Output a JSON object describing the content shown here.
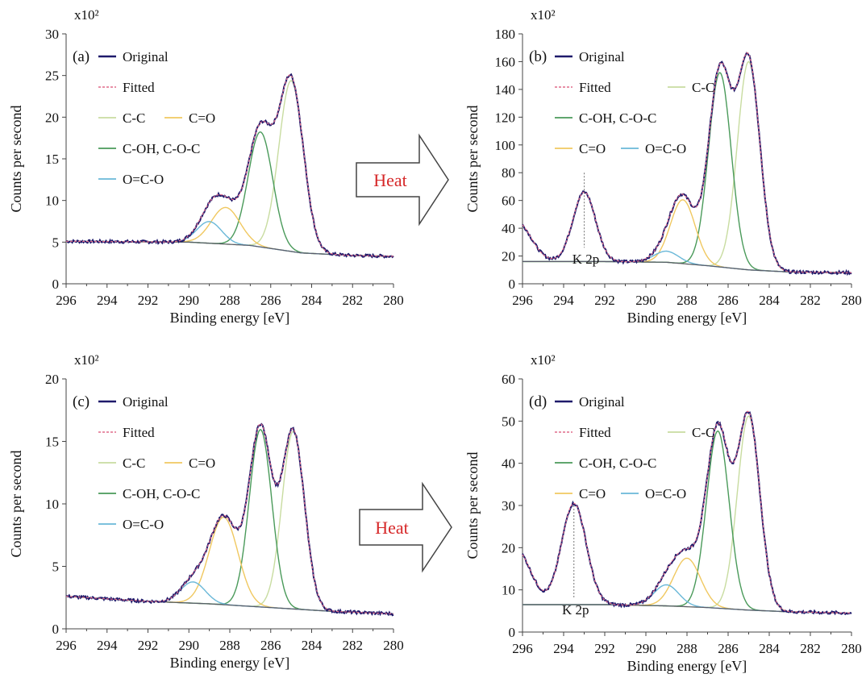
{
  "heat_label": "Heat",
  "colors": {
    "original": "#1f1a6b",
    "fitted": "#e06c8a",
    "cc": "#c8dca0",
    "co": "#f0c860",
    "coh": "#4a9a5a",
    "oco": "#6ab8d8",
    "bg": "#5a5a6a",
    "heat": "#d62728"
  },
  "chart_data": [
    {
      "type": "line",
      "panel": "(a)",
      "xlabel": "Binding energy [eV]",
      "ylabel": "Counts per second",
      "scale": "x10²",
      "xlim": [
        296,
        280
      ],
      "ylim": [
        0,
        30
      ],
      "xticks": [
        296,
        294,
        292,
        290,
        288,
        286,
        284,
        282,
        280
      ],
      "yticks": [
        0,
        5,
        10,
        15,
        20,
        25,
        30
      ],
      "legend": [
        {
          "key": "original",
          "label": "Original"
        },
        {
          "key": "fitted",
          "label": "Fitted"
        },
        {
          "key": "cc",
          "label": "C-C"
        },
        {
          "key": "co",
          "label": "C=O"
        },
        {
          "key": "coh",
          "label": "C-OH, C-O-C"
        },
        {
          "key": "oco",
          "label": "O=C-O"
        }
      ],
      "baseline": [
        [
          296,
          5.1
        ],
        [
          290,
          5.0
        ],
        [
          287,
          4.6
        ],
        [
          284.5,
          3.7
        ],
        [
          282,
          3.4
        ],
        [
          280,
          3.3
        ]
      ],
      "peaks": {
        "cc": [
          285.0,
          20.5,
          0.6
        ],
        "coh": [
          286.5,
          13.8,
          0.6
        ],
        "co": [
          288.2,
          4.4,
          0.7
        ],
        "oco": [
          289.0,
          2.6,
          0.6
        ]
      },
      "annotation": null
    },
    {
      "type": "line",
      "panel": "(b)",
      "xlabel": "Binding energy [eV]",
      "ylabel": "Counts per second",
      "scale": "x10²",
      "xlim": [
        296,
        280
      ],
      "ylim": [
        0,
        180
      ],
      "xticks": [
        296,
        294,
        292,
        290,
        288,
        286,
        284,
        282,
        280
      ],
      "yticks": [
        0,
        20,
        40,
        60,
        80,
        100,
        120,
        140,
        160,
        180
      ],
      "legend": [
        {
          "key": "original",
          "label": "Original"
        },
        {
          "key": "fitted",
          "label": "Fitted"
        },
        {
          "key": "cc",
          "label": "C-C"
        },
        {
          "key": "coh",
          "label": "C-OH, C-O-C"
        },
        {
          "key": "co",
          "label": "C=O"
        },
        {
          "key": "oco",
          "label": "O=C-O"
        }
      ],
      "baseline": [
        [
          292,
          16
        ],
        [
          289,
          15.5
        ],
        [
          287,
          13
        ],
        [
          285,
          10
        ],
        [
          283,
          8.5
        ],
        [
          280,
          8
        ]
      ],
      "peaks": {
        "cc": [
          285.0,
          150,
          0.55
        ],
        "coh": [
          286.4,
          140,
          0.55
        ],
        "co": [
          288.2,
          46,
          0.6
        ],
        "oco": [
          289.0,
          8,
          0.6
        ]
      },
      "extra": [
        {
          "center": 293.0,
          "height": 50,
          "width": 0.55
        },
        {
          "center": 296.3,
          "height": 29,
          "width": 0.7
        }
      ],
      "annotation": {
        "text": "K 2p",
        "x": 293.0,
        "y0": 26,
        "y1": 80
      }
    },
    {
      "type": "line",
      "panel": "(c)",
      "xlabel": "Binding energy [eV]",
      "ylabel": "Counts per second",
      "scale": "x10²",
      "xlim": [
        296,
        280
      ],
      "ylim": [
        0,
        20
      ],
      "xticks": [
        296,
        294,
        292,
        290,
        288,
        286,
        284,
        282,
        280
      ],
      "yticks": [
        0,
        5,
        10,
        15,
        20
      ],
      "legend": [
        {
          "key": "original",
          "label": "Original"
        },
        {
          "key": "fitted",
          "label": "Fitted"
        },
        {
          "key": "cc",
          "label": "C-C"
        },
        {
          "key": "co",
          "label": "C=O"
        },
        {
          "key": "coh",
          "label": "C-OH, C-O-C"
        },
        {
          "key": "oco",
          "label": "O=C-O"
        }
      ],
      "baseline": [
        [
          296,
          2.6
        ],
        [
          292,
          2.2
        ],
        [
          289,
          2.0
        ],
        [
          286,
          1.7
        ],
        [
          283,
          1.4
        ],
        [
          280,
          1.2
        ]
      ],
      "peaks": {
        "cc": [
          284.9,
          14.2,
          0.55
        ],
        "coh": [
          286.5,
          14.2,
          0.55
        ],
        "co": [
          288.3,
          7.0,
          0.7
        ],
        "oco": [
          289.8,
          1.7,
          0.6
        ]
      },
      "annotation": null
    },
    {
      "type": "line",
      "panel": "(d)",
      "xlabel": "Binding energy [eV]",
      "ylabel": "Counts per second",
      "scale": "x10²",
      "xlim": [
        296,
        280
      ],
      "ylim": [
        0,
        60
      ],
      "xticks": [
        296,
        294,
        292,
        290,
        288,
        286,
        284,
        282,
        280
      ],
      "yticks": [
        0,
        10,
        20,
        30,
        40,
        50,
        60
      ],
      "legend": [
        {
          "key": "original",
          "label": "Original"
        },
        {
          "key": "fitted",
          "label": "Fitted"
        },
        {
          "key": "cc",
          "label": "C-C"
        },
        {
          "key": "coh",
          "label": "C-OH, C-O-C"
        },
        {
          "key": "co",
          "label": "C=O"
        },
        {
          "key": "oco",
          "label": "O=C-O"
        }
      ],
      "baseline": [
        [
          292,
          6.5
        ],
        [
          289,
          6.2
        ],
        [
          287,
          5.8
        ],
        [
          285,
          5.2
        ],
        [
          283,
          4.8
        ],
        [
          280,
          4.5
        ]
      ],
      "peaks": {
        "cc": [
          285.0,
          46,
          0.55
        ],
        "coh": [
          286.5,
          42,
          0.55
        ],
        "co": [
          288.0,
          11.5,
          0.65
        ],
        "oco": [
          289.0,
          5,
          0.6
        ]
      },
      "extra": [
        {
          "center": 293.5,
          "height": 24,
          "width": 0.6
        },
        {
          "center": 296.3,
          "height": 13,
          "width": 0.7
        }
      ],
      "annotation": {
        "text": "K 2p",
        "x": 293.5,
        "y0": 8,
        "y1": 30
      }
    }
  ]
}
